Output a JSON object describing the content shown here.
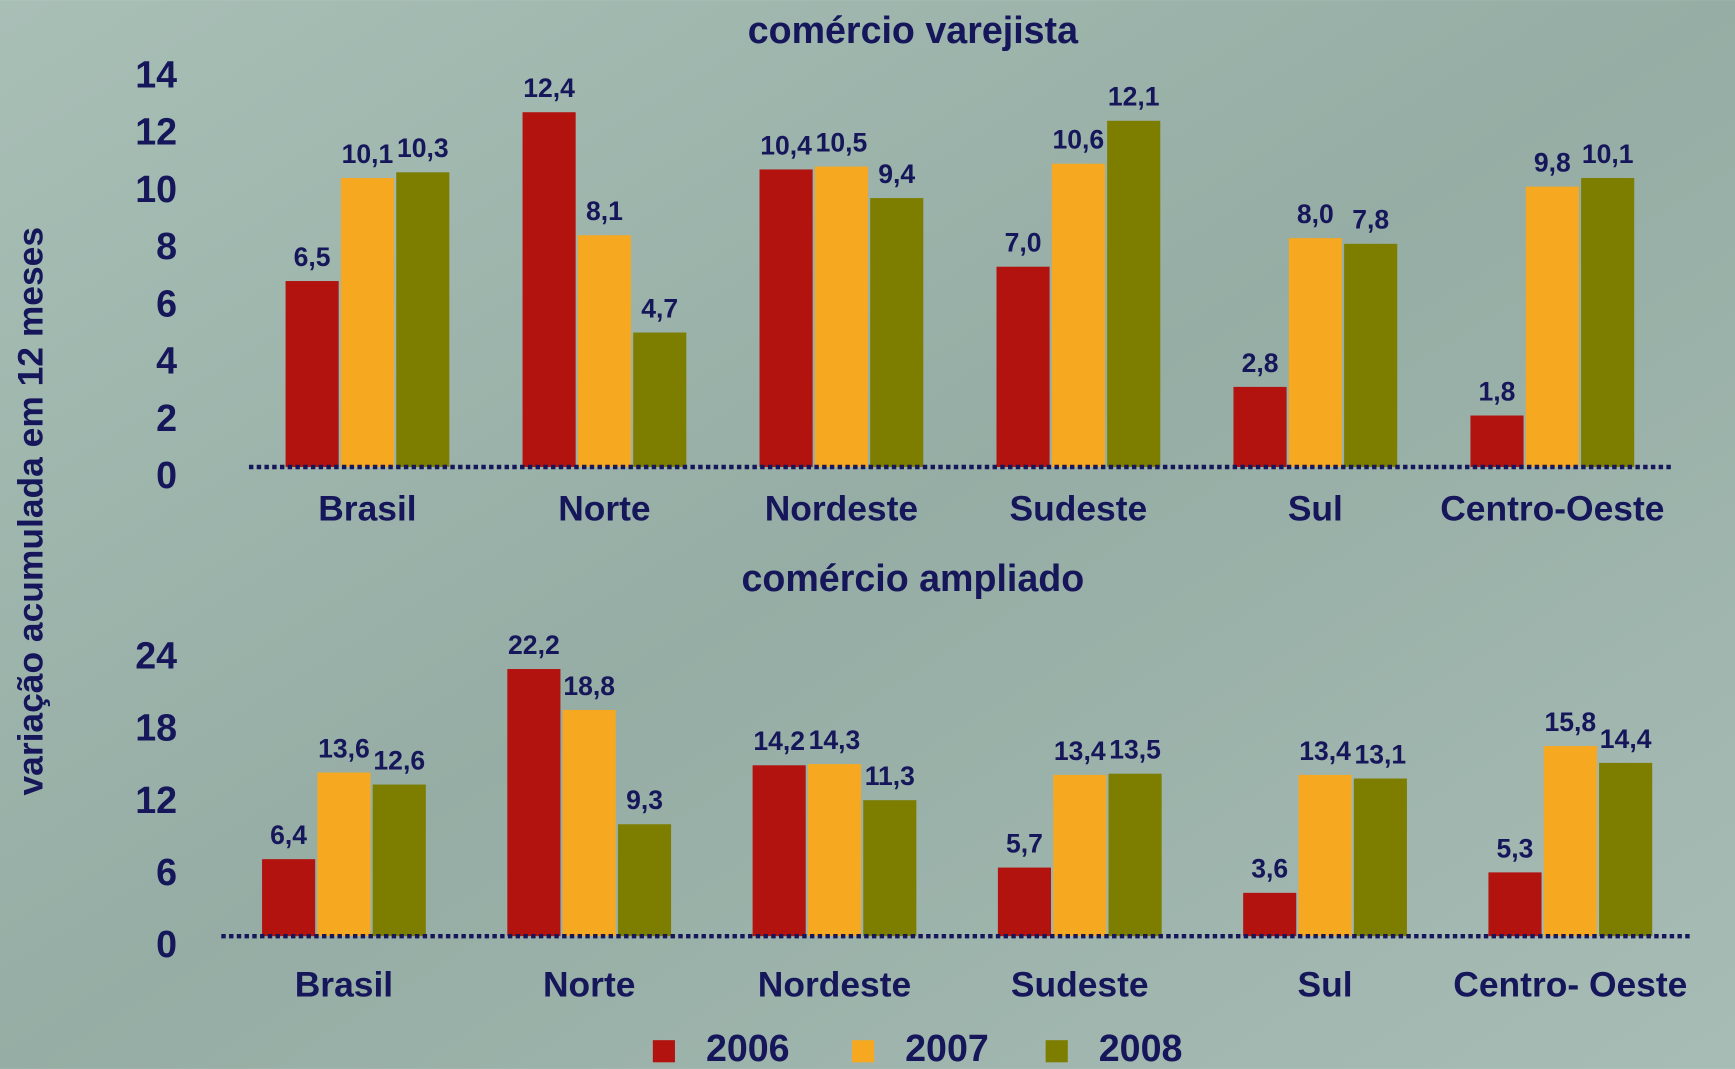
{
  "chart_data": [
    {
      "type": "bar",
      "title": "comércio varejista",
      "ylabel": "variação acumulada em 12 meses",
      "categories": [
        "Brasil",
        "Norte",
        "Nordeste",
        "Sudeste",
        "Sul",
        "Centro-Oeste"
      ],
      "ylim": [
        0,
        14
      ],
      "yticks": [
        0,
        2,
        4,
        6,
        8,
        10,
        12,
        14
      ],
      "series": [
        {
          "name": "2006",
          "color": "#b3130f",
          "values": [
            6.5,
            12.4,
            10.4,
            7.0,
            2.8,
            1.8
          ],
          "value_labels": [
            "6,5",
            "12,4",
            "10,4",
            "7,0",
            "2,8",
            "1,8"
          ]
        },
        {
          "name": "2007",
          "color": "#f6a821",
          "values": [
            10.1,
            8.1,
            10.5,
            10.6,
            8.0,
            9.8
          ],
          "value_labels": [
            "10,1",
            "8,1",
            "10,5",
            "10,6",
            "8,0",
            "9,8"
          ]
        },
        {
          "name": "2008",
          "color": "#7d7d00",
          "values": [
            10.3,
            4.7,
            9.4,
            12.1,
            7.8,
            10.1
          ],
          "value_labels": [
            "10,3",
            "4,7",
            "9,4",
            "12,1",
            "7,8",
            "10,1"
          ]
        }
      ]
    },
    {
      "type": "bar",
      "title": "comércio ampliado",
      "categories": [
        "Brasil",
        "Norte",
        "Nordeste",
        "Sudeste",
        "Sul",
        "Centro- Oeste"
      ],
      "ylim": [
        0,
        24
      ],
      "yticks": [
        0,
        6,
        12,
        18,
        24
      ],
      "series": [
        {
          "name": "2006",
          "color": "#b3130f",
          "values": [
            6.4,
            22.2,
            14.2,
            5.7,
            3.6,
            5.3
          ],
          "value_labels": [
            "6,4",
            "22,2",
            "14,2",
            "5,7",
            "3,6",
            "5,3"
          ]
        },
        {
          "name": "2007",
          "color": "#f6a821",
          "values": [
            13.6,
            18.8,
            14.3,
            13.4,
            13.4,
            15.8
          ],
          "value_labels": [
            "13,6",
            "18,8",
            "14,3",
            "13,4",
            "13,4",
            "15,8"
          ]
        },
        {
          "name": "2008",
          "color": "#7d7d00",
          "values": [
            12.6,
            9.3,
            11.3,
            13.5,
            13.1,
            14.4
          ],
          "value_labels": [
            "12,6",
            "9,3",
            "11,3",
            "13,5",
            "13,1",
            "14,4"
          ]
        }
      ]
    }
  ]
}
